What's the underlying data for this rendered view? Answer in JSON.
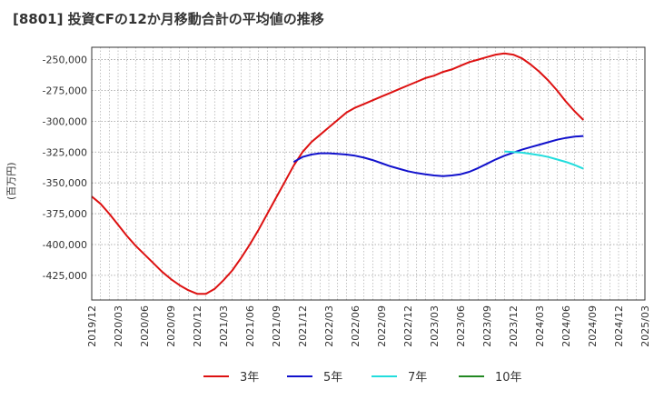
{
  "chart_data": {
    "type": "line",
    "title": "[8801]  投資CFの12か月移動合計の平均値の推移",
    "ylabel": "(百万円)",
    "xlabel": "",
    "ylim": [
      -445000,
      -240000
    ],
    "yticks": [
      -250000,
      -275000,
      -300000,
      -325000,
      -350000,
      -375000,
      -400000,
      -425000
    ],
    "ytick_labels": [
      "-250,000",
      "-275,000",
      "-300,000",
      "-325,000",
      "-350,000",
      "-375,000",
      "-400,000",
      "-425,000"
    ],
    "xlim": [
      "2019-12",
      "2025-03"
    ],
    "xtick_labels": [
      "2019/12",
      "2020/03",
      "2020/06",
      "2020/09",
      "2020/12",
      "2021/03",
      "2021/06",
      "2021/09",
      "2021/12",
      "2022/03",
      "2022/06",
      "2022/09",
      "2022/12",
      "2023/03",
      "2023/06",
      "2023/09",
      "2023/12",
      "2024/03",
      "2024/06",
      "2024/09",
      "2024/12",
      "2025/03"
    ],
    "grid": true,
    "legend_position": "bottom",
    "series": [
      {
        "name": "3年",
        "color": "#dd1111",
        "points": [
          [
            "2019-12",
            -361000
          ],
          [
            "2020-01",
            -367000
          ],
          [
            "2020-02",
            -375000
          ],
          [
            "2020-03",
            -384000
          ],
          [
            "2020-04",
            -393000
          ],
          [
            "2020-05",
            -401000
          ],
          [
            "2020-06",
            -408000
          ],
          [
            "2020-07",
            -415000
          ],
          [
            "2020-08",
            -422000
          ],
          [
            "2020-09",
            -428000
          ],
          [
            "2020-10",
            -433000
          ],
          [
            "2020-11",
            -437000
          ],
          [
            "2020-12",
            -440000
          ],
          [
            "2021-01",
            -440000
          ],
          [
            "2021-02",
            -436000
          ],
          [
            "2021-03",
            -429000
          ],
          [
            "2021-04",
            -421000
          ],
          [
            "2021-05",
            -411000
          ],
          [
            "2021-06",
            -400000
          ],
          [
            "2021-07",
            -388000
          ],
          [
            "2021-08",
            -375000
          ],
          [
            "2021-09",
            -362000
          ],
          [
            "2021-10",
            -349000
          ],
          [
            "2021-11",
            -336000
          ],
          [
            "2021-12",
            -325000
          ],
          [
            "2022-01",
            -317000
          ],
          [
            "2022-02",
            -311000
          ],
          [
            "2022-03",
            -305000
          ],
          [
            "2022-04",
            -299000
          ],
          [
            "2022-05",
            -293000
          ],
          [
            "2022-06",
            -289000
          ],
          [
            "2022-07",
            -286000
          ],
          [
            "2022-08",
            -283000
          ],
          [
            "2022-09",
            -280000
          ],
          [
            "2022-10",
            -277000
          ],
          [
            "2022-11",
            -274000
          ],
          [
            "2022-12",
            -271000
          ],
          [
            "2023-01",
            -268000
          ],
          [
            "2023-02",
            -265000
          ],
          [
            "2023-03",
            -263000
          ],
          [
            "2023-04",
            -260000
          ],
          [
            "2023-05",
            -258000
          ],
          [
            "2023-06",
            -255000
          ],
          [
            "2023-07",
            -252000
          ],
          [
            "2023-08",
            -250000
          ],
          [
            "2023-09",
            -248000
          ],
          [
            "2023-10",
            -246000
          ],
          [
            "2023-11",
            -245000
          ],
          [
            "2023-12",
            -246000
          ],
          [
            "2024-01",
            -249000
          ],
          [
            "2024-02",
            -254000
          ],
          [
            "2024-03",
            -260000
          ],
          [
            "2024-04",
            -267000
          ],
          [
            "2024-05",
            -275000
          ],
          [
            "2024-06",
            -284000
          ],
          [
            "2024-07",
            -292000
          ],
          [
            "2024-08",
            -299000
          ]
        ]
      },
      {
        "name": "5年",
        "color": "#1111cc",
        "points": [
          [
            "2021-11",
            -333000
          ],
          [
            "2021-12",
            -329000
          ],
          [
            "2022-01",
            -327000
          ],
          [
            "2022-02",
            -326000
          ],
          [
            "2022-03",
            -326000
          ],
          [
            "2022-04",
            -326500
          ],
          [
            "2022-05",
            -327000
          ],
          [
            "2022-06",
            -328000
          ],
          [
            "2022-07",
            -329500
          ],
          [
            "2022-08",
            -331500
          ],
          [
            "2022-09",
            -334000
          ],
          [
            "2022-10",
            -336500
          ],
          [
            "2022-11",
            -338500
          ],
          [
            "2022-12",
            -340500
          ],
          [
            "2023-01",
            -342000
          ],
          [
            "2023-02",
            -343000
          ],
          [
            "2023-03",
            -344000
          ],
          [
            "2023-04",
            -344500
          ],
          [
            "2023-05",
            -344000
          ],
          [
            "2023-06",
            -343000
          ],
          [
            "2023-07",
            -341000
          ],
          [
            "2023-08",
            -338000
          ],
          [
            "2023-09",
            -334500
          ],
          [
            "2023-10",
            -331000
          ],
          [
            "2023-11",
            -328000
          ],
          [
            "2023-12",
            -325500
          ],
          [
            "2024-01",
            -323000
          ],
          [
            "2024-02",
            -321000
          ],
          [
            "2024-03",
            -319000
          ],
          [
            "2024-04",
            -317000
          ],
          [
            "2024-05",
            -315000
          ],
          [
            "2024-06",
            -313500
          ],
          [
            "2024-07",
            -312500
          ],
          [
            "2024-08",
            -312000
          ]
        ]
      },
      {
        "name": "7年",
        "color": "#22dddd",
        "points": [
          [
            "2023-11",
            -324500
          ],
          [
            "2023-12",
            -325000
          ],
          [
            "2024-01",
            -325500
          ],
          [
            "2024-02",
            -326500
          ],
          [
            "2024-03",
            -327500
          ],
          [
            "2024-04",
            -329000
          ],
          [
            "2024-05",
            -331000
          ],
          [
            "2024-06",
            -333000
          ],
          [
            "2024-07",
            -335500
          ],
          [
            "2024-08",
            -338500
          ]
        ]
      },
      {
        "name": "10年",
        "color": "#228822",
        "points": []
      }
    ]
  }
}
